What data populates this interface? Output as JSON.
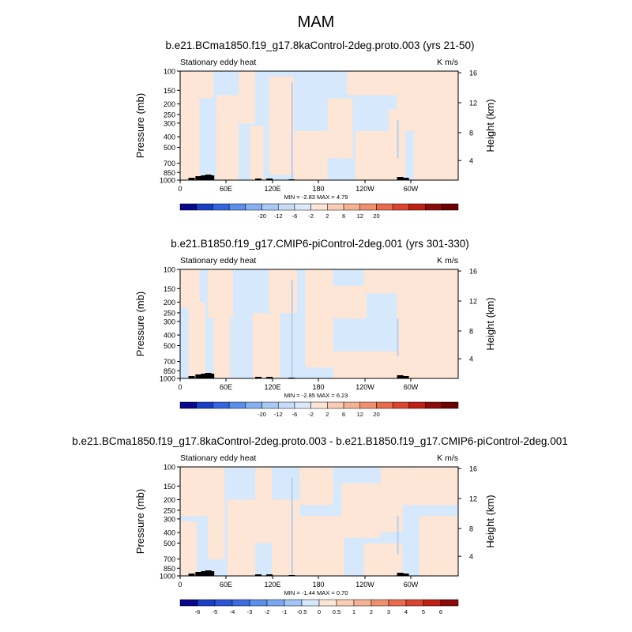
{
  "main_title": "MAM",
  "colors": {
    "blue_light": "#d6e8fb",
    "peach_light": "#fde6d6",
    "blue_mid": "#b7cef0",
    "topography": "#000000"
  },
  "chart_data": [
    {
      "type": "heatmap",
      "title": "b.e21.BCma1850.f19_g17.8kaControl-2deg.proto.003 (yrs 21-50)",
      "left_label": "Stationary eddy heat",
      "right_label": "K m/s",
      "ylabel": "Pressure (mb)",
      "ylabel_right": "Height (km)",
      "y_ticks": [
        "100",
        "150",
        "200",
        "250",
        "300",
        "400",
        "500",
        "700",
        "850",
        "1000"
      ],
      "y_right_ticks": [
        "16",
        "12",
        "8",
        "4"
      ],
      "x_ticks": [
        "0",
        "60E",
        "120E",
        "180",
        "120W",
        "60W"
      ],
      "stats": "MIN = -2.83  MAX = 4.79",
      "colorbar_labels": [
        "-20",
        "-12",
        "-6",
        "-2",
        "2",
        "6",
        "12",
        "20"
      ],
      "colorbar_colors": [
        "#08088a",
        "#1a3fc4",
        "#3366dd",
        "#5b8fe9",
        "#86b0f2",
        "#a9c9f5",
        "#c8dcf8",
        "#dde9fb",
        "#fde6d6",
        "#f9cdb5",
        "#f4b293",
        "#ef9170",
        "#e86b4c",
        "#d94530",
        "#c01f14",
        "#8b0a0a",
        "#6b0000"
      ]
    },
    {
      "type": "heatmap",
      "title": "b.e21.B1850.f19_g17.CMIP6-piControl-2deg.001 (yrs 301-330)",
      "left_label": "Stationary eddy heat",
      "right_label": "K m/s",
      "ylabel": "Pressure (mb)",
      "ylabel_right": "Height (km)",
      "y_ticks": [
        "100",
        "150",
        "200",
        "250",
        "300",
        "400",
        "500",
        "700",
        "850",
        "1000"
      ],
      "y_right_ticks": [
        "16",
        "12",
        "8",
        "4"
      ],
      "x_ticks": [
        "0",
        "60E",
        "120E",
        "180",
        "120W",
        "60W"
      ],
      "stats": "MIN = -2.85  MAX = 6.23",
      "colorbar_labels": [
        "-20",
        "-12",
        "-6",
        "-2",
        "2",
        "6",
        "12",
        "20"
      ],
      "colorbar_colors": [
        "#08088a",
        "#1a3fc4",
        "#3366dd",
        "#5b8fe9",
        "#86b0f2",
        "#a9c9f5",
        "#c8dcf8",
        "#dde9fb",
        "#fde6d6",
        "#f9cdb5",
        "#f4b293",
        "#ef9170",
        "#e86b4c",
        "#d94530",
        "#c01f14",
        "#8b0a0a",
        "#6b0000"
      ]
    },
    {
      "type": "heatmap",
      "title": "b.e21.BCma1850.f19_g17.8kaControl-2deg.proto.003 - b.e21.B1850.f19_g17.CMIP6-piControl-2deg.001",
      "left_label": "Stationary eddy heat",
      "right_label": "K m/s",
      "ylabel": "Pressure (mb)",
      "ylabel_right": "Height (km)",
      "y_ticks": [
        "100",
        "150",
        "200",
        "250",
        "300",
        "400",
        "500",
        "700",
        "850",
        "1000"
      ],
      "y_right_ticks": [
        "16",
        "12",
        "8",
        "4"
      ],
      "x_ticks": [
        "0",
        "60E",
        "120E",
        "180",
        "120W",
        "60W"
      ],
      "stats": "MIN = -1.44  MAX = 0.70",
      "colorbar_labels": [
        "-6",
        "-5",
        "-4",
        "-3",
        "-2",
        "-1",
        "-0.5",
        "0",
        "0.5",
        "1",
        "2",
        "3",
        "4",
        "5",
        "6"
      ],
      "colorbar_colors": [
        "#08088a",
        "#1a3fc4",
        "#2b55d6",
        "#3d6be0",
        "#5b8fe9",
        "#7aa6ef",
        "#a3c3f4",
        "#d6e8fb",
        "#fde6d6",
        "#f9cdb5",
        "#f4b293",
        "#ef9170",
        "#e86b4c",
        "#d94530",
        "#c01f14",
        "#8b0a0a"
      ]
    }
  ]
}
